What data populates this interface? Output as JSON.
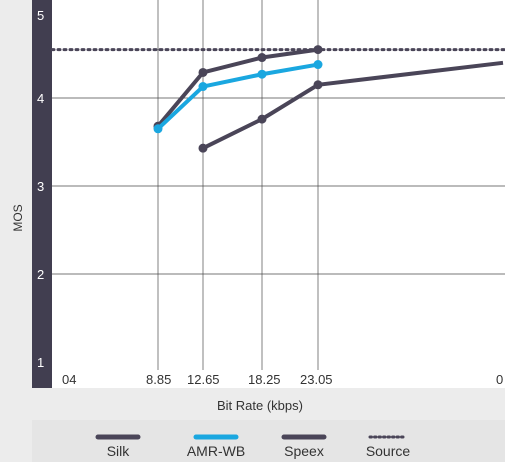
{
  "chart_data": {
    "type": "line",
    "xlabel": "Bit Rate (kbps)",
    "ylabel": "MOS",
    "ylim": [
      1,
      5
    ],
    "grid": true,
    "legend_position": "bottom",
    "y_ticks": [
      "1",
      "2",
      "3",
      "4",
      "5"
    ],
    "x_tick_labels": [
      "04",
      "8.85",
      "12.65",
      "18.25",
      "23.05",
      "0"
    ],
    "series": [
      {
        "name": "Silk",
        "color": "#4a4558",
        "style": "solid",
        "points": [
          [
            8.85,
            3.68
          ],
          [
            12.65,
            4.29
          ],
          [
            18.25,
            4.46
          ],
          [
            23.05,
            4.55
          ]
        ]
      },
      {
        "name": "AMR-WB",
        "color": "#1aa7e0",
        "style": "solid",
        "points": [
          [
            8.85,
            3.65
          ],
          [
            12.65,
            4.13
          ],
          [
            18.25,
            4.27
          ],
          [
            23.05,
            4.38
          ]
        ]
      },
      {
        "name": "Speex",
        "color": "#4a4558",
        "style": "solid",
        "points": [
          [
            12.65,
            3.43
          ],
          [
            18.25,
            3.76
          ],
          [
            23.05,
            4.15
          ],
          [
            40,
            4.4
          ]
        ]
      },
      {
        "name": "Source",
        "color": "#4a4558",
        "style": "dotted",
        "value": 4.55
      }
    ]
  }
}
